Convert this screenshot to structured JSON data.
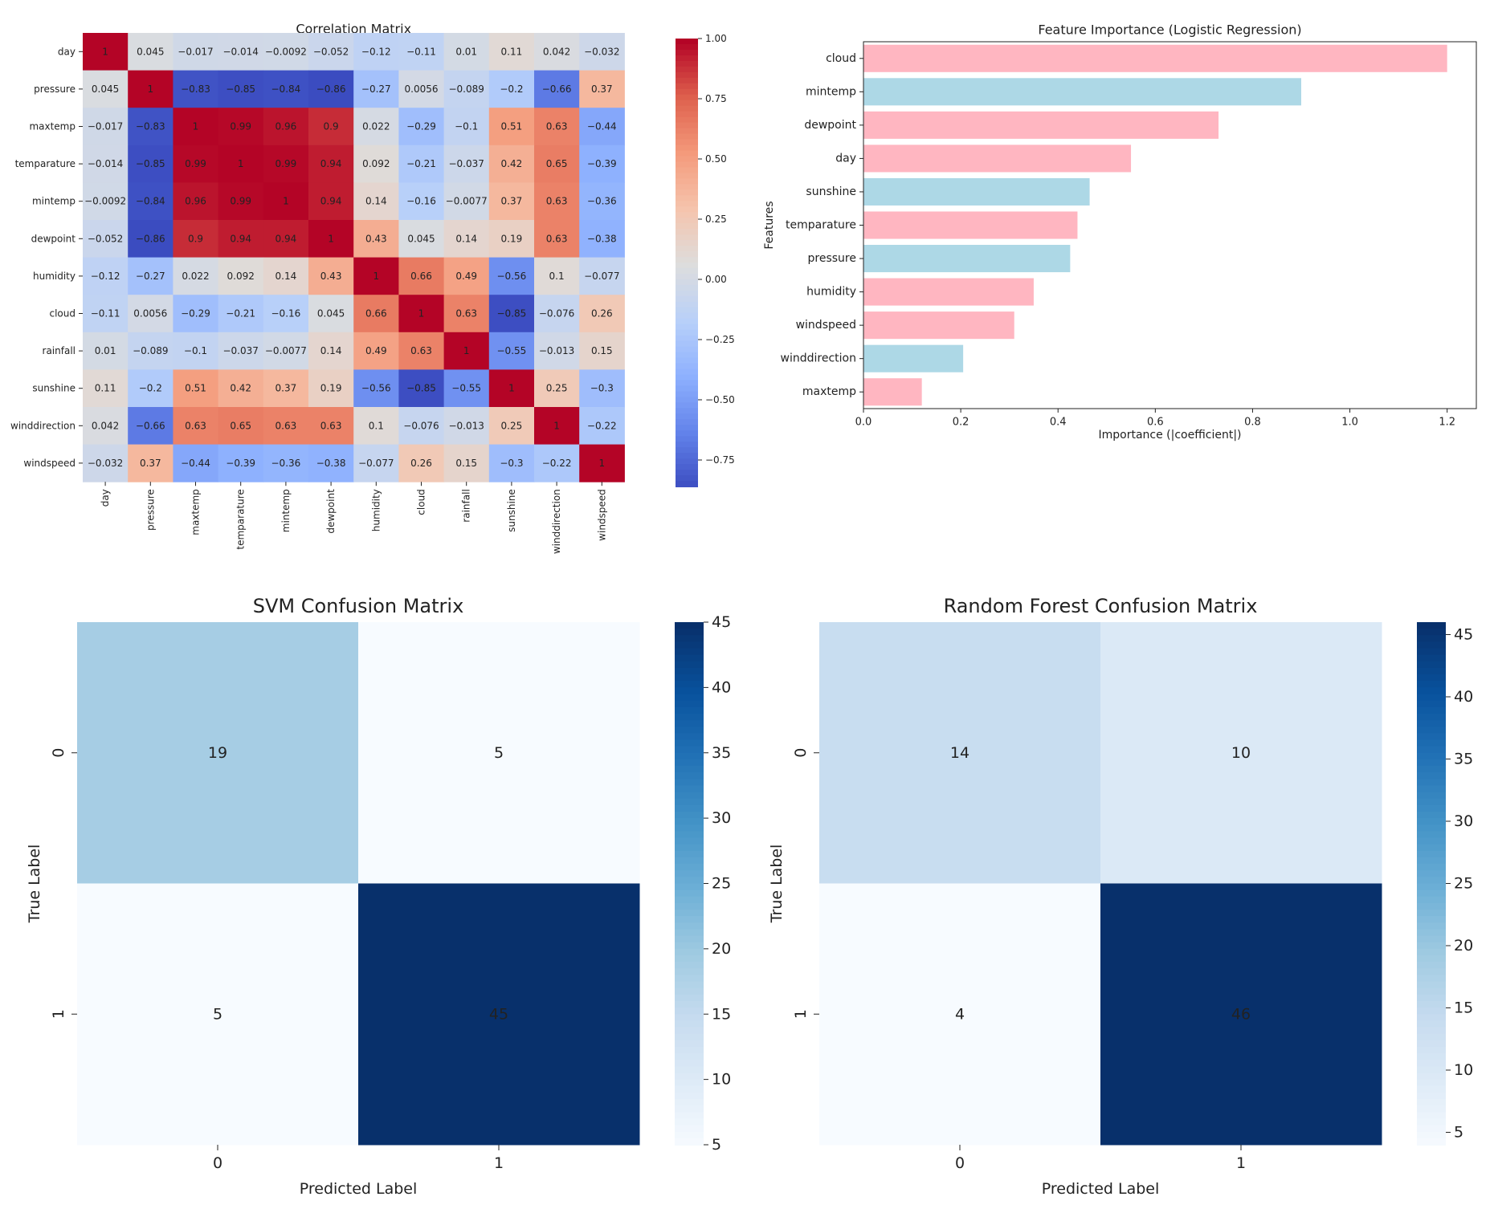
{
  "chart_data": [
    {
      "type": "heatmap",
      "title": "Correlation Matrix",
      "labels": [
        "day",
        "pressure",
        "maxtemp",
        "temparature",
        "mintemp",
        "dewpoint",
        "humidity",
        "cloud",
        "rainfall",
        "sunshine",
        "winddirection",
        "windspeed"
      ],
      "values": [
        [
          1,
          0.045,
          -0.017,
          -0.014,
          -0.0092,
          -0.052,
          -0.12,
          -0.11,
          0.01,
          0.11,
          0.042,
          -0.032
        ],
        [
          0.045,
          1,
          -0.83,
          -0.85,
          -0.84,
          -0.86,
          -0.27,
          0.0056,
          -0.089,
          -0.2,
          -0.66,
          0.37
        ],
        [
          -0.017,
          -0.83,
          1,
          0.99,
          0.96,
          0.9,
          0.022,
          -0.29,
          -0.1,
          0.51,
          0.63,
          -0.44
        ],
        [
          -0.014,
          -0.85,
          0.99,
          1,
          0.99,
          0.94,
          0.092,
          -0.21,
          -0.037,
          0.42,
          0.65,
          -0.39
        ],
        [
          -0.0092,
          -0.84,
          0.96,
          0.99,
          1,
          0.94,
          0.14,
          -0.16,
          -0.0077,
          0.37,
          0.63,
          -0.36
        ],
        [
          -0.052,
          -0.86,
          0.9,
          0.94,
          0.94,
          1,
          0.43,
          0.045,
          0.14,
          0.19,
          0.63,
          -0.38
        ],
        [
          -0.12,
          -0.27,
          0.022,
          0.092,
          0.14,
          0.43,
          1,
          0.66,
          0.49,
          -0.56,
          0.1,
          -0.077
        ],
        [
          -0.11,
          0.0056,
          -0.29,
          -0.21,
          -0.16,
          0.045,
          0.66,
          1,
          0.63,
          -0.85,
          -0.076,
          0.26
        ],
        [
          0.01,
          -0.089,
          -0.1,
          -0.037,
          -0.0077,
          0.14,
          0.49,
          0.63,
          1,
          -0.55,
          -0.013,
          0.15
        ],
        [
          0.11,
          -0.2,
          0.51,
          0.42,
          0.37,
          0.19,
          -0.56,
          -0.85,
          -0.55,
          1,
          0.25,
          -0.3
        ],
        [
          0.042,
          -0.66,
          0.63,
          0.65,
          0.63,
          0.63,
          0.1,
          -0.076,
          -0.013,
          0.25,
          1,
          -0.22
        ],
        [
          -0.032,
          0.37,
          -0.44,
          -0.39,
          -0.36,
          -0.38,
          -0.077,
          0.26,
          0.15,
          -0.3,
          -0.22,
          1
        ]
      ],
      "colormap": "coolwarm",
      "vmin": -0.86,
      "vmax": 1,
      "colorbar_ticks": [
        1.0,
        0.75,
        0.5,
        0.25,
        0.0,
        -0.25,
        -0.5,
        -0.75
      ],
      "colorbar_tick_labels": [
        "1.00",
        "0.75",
        "0.50",
        "0.25",
        "0.00",
        "−0.25",
        "−0.50",
        "−0.75"
      ],
      "grid": false
    },
    {
      "type": "bar",
      "orientation": "horizontal",
      "title": "Feature Importance (Logistic Regression)",
      "xlabel": "Importance (|coefficient|)",
      "ylabel": "Features",
      "categories": [
        "cloud",
        "mintemp",
        "dewpoint",
        "day",
        "sunshine",
        "temparature",
        "pressure",
        "humidity",
        "windspeed",
        "winddirection",
        "maxtemp"
      ],
      "values": [
        1.2,
        0.9,
        0.73,
        0.55,
        0.465,
        0.44,
        0.425,
        0.35,
        0.31,
        0.205,
        0.12
      ],
      "colors": [
        "#FFB6C1",
        "#ADD8E6",
        "#FFB6C1",
        "#FFB6C1",
        "#ADD8E6",
        "#FFB6C1",
        "#ADD8E6",
        "#FFB6C1",
        "#FFB6C1",
        "#ADD8E6",
        "#FFB6C1"
      ],
      "xlim": [
        0,
        1.26
      ],
      "xticks": [
        0,
        0.2,
        0.4,
        0.6,
        0.8,
        1.0,
        1.2
      ],
      "xtick_labels": [
        "0.0",
        "0.2",
        "0.4",
        "0.6",
        "0.8",
        "1.0",
        "1.2"
      ],
      "grid": false
    },
    {
      "type": "heatmap",
      "title": "SVM Confusion Matrix",
      "xlabel": "Predicted Label",
      "ylabel": "True Label",
      "x_labels": [
        "0",
        "1"
      ],
      "y_labels": [
        "0",
        "1"
      ],
      "values": [
        [
          19,
          5
        ],
        [
          5,
          45
        ]
      ],
      "colormap": "Blues",
      "vmin": 5,
      "vmax": 45,
      "colorbar_ticks": [
        45,
        40,
        35,
        30,
        25,
        20,
        15,
        10,
        5
      ],
      "grid": false
    },
    {
      "type": "heatmap",
      "title": "Random Forest Confusion Matrix",
      "xlabel": "Predicted Label",
      "ylabel": "True Label",
      "x_labels": [
        "0",
        "1"
      ],
      "y_labels": [
        "0",
        "1"
      ],
      "values": [
        [
          14,
          10
        ],
        [
          4,
          46
        ]
      ],
      "colormap": "Blues",
      "vmin": 4,
      "vmax": 46,
      "colorbar_ticks": [
        45,
        40,
        35,
        30,
        25,
        20,
        15,
        10,
        5
      ],
      "grid": false
    }
  ]
}
